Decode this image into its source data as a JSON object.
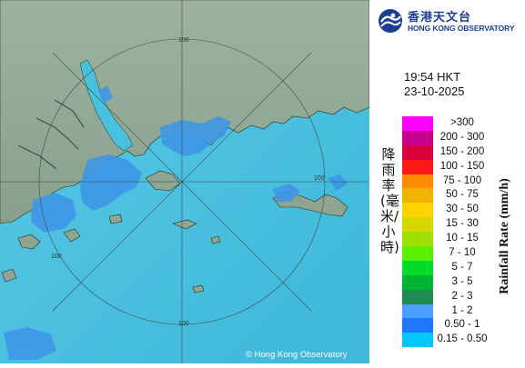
{
  "header": {
    "org_name_cn": "香港天文台",
    "org_name_en": "HONG KONG OBSERVATORY",
    "time": "19:54 HKT",
    "date": "23-10-2025"
  },
  "legend": {
    "title_cn": "降雨率(毫米/小時)",
    "title_en": "Rainfall Rate (mm/h)",
    "items": [
      {
        "label": ">300",
        "color": "#ff00ff"
      },
      {
        "label": "200 - 300",
        "color": "#c8008c"
      },
      {
        "label": "150 - 200",
        "color": "#d9003a"
      },
      {
        "label": "100 - 150",
        "color": "#ff1a1a"
      },
      {
        "label": "75 - 100",
        "color": "#ff8c00"
      },
      {
        "label": "50 - 75",
        "color": "#f0b400"
      },
      {
        "label": "30 - 50",
        "color": "#ffd200"
      },
      {
        "label": "15 - 30",
        "color": "#d7d700"
      },
      {
        "label": "10 - 15",
        "color": "#a0e000"
      },
      {
        "label": "7 - 10",
        "color": "#5af000"
      },
      {
        "label": "5 - 7",
        "color": "#00dc28"
      },
      {
        "label": "3 - 5",
        "color": "#00b432"
      },
      {
        "label": "2 - 3",
        "color": "#1e8c50"
      },
      {
        "label": "1 - 2",
        "color": "#4ba0ff"
      },
      {
        "label": "0.50 - 1",
        "color": "#1e78ff"
      },
      {
        "label": "0.15 - 0.50",
        "color": "#00c8ff"
      }
    ]
  },
  "map": {
    "ring_labels": [
      "100",
      "100",
      "100",
      "100"
    ],
    "copyright": "© Hong Kong Observatory",
    "land_color": "#8fa491",
    "sea_color": "#49c0dd",
    "rain_color": "#3f96e8"
  }
}
